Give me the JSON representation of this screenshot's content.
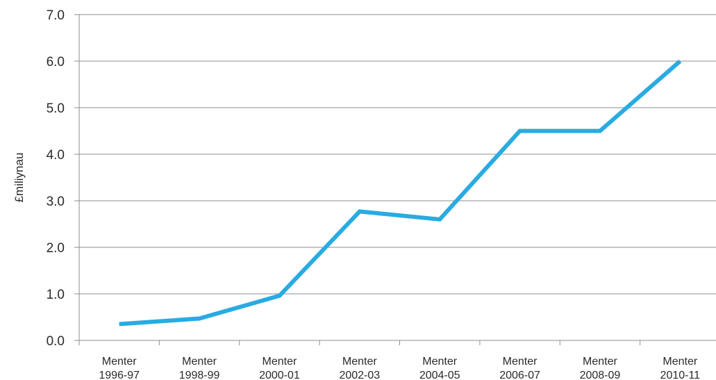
{
  "chart_data": {
    "type": "line",
    "title": "",
    "xlabel": "",
    "ylabel": "£miliynau",
    "ylim": [
      0,
      7
    ],
    "y_ticks": [
      "0.0",
      "1.0",
      "2.0",
      "3.0",
      "4.0",
      "5.0",
      "6.0",
      "7.0"
    ],
    "categories": [
      [
        "Menter",
        "1996-97"
      ],
      [
        "Menter",
        "1998-99"
      ],
      [
        "Menter",
        "2000-01"
      ],
      [
        "Menter",
        "2002-03"
      ],
      [
        "Menter",
        "2004-05"
      ],
      [
        "Menter",
        "2006-07"
      ],
      [
        "Menter",
        "2008-09"
      ],
      [
        "Menter",
        "2010-11"
      ]
    ],
    "series": [
      {
        "values": [
          0.35,
          0.47,
          0.96,
          2.77,
          2.6,
          4.5,
          4.5,
          6.0
        ],
        "color": "#29abe2"
      }
    ],
    "grid": true,
    "legend": "none"
  }
}
